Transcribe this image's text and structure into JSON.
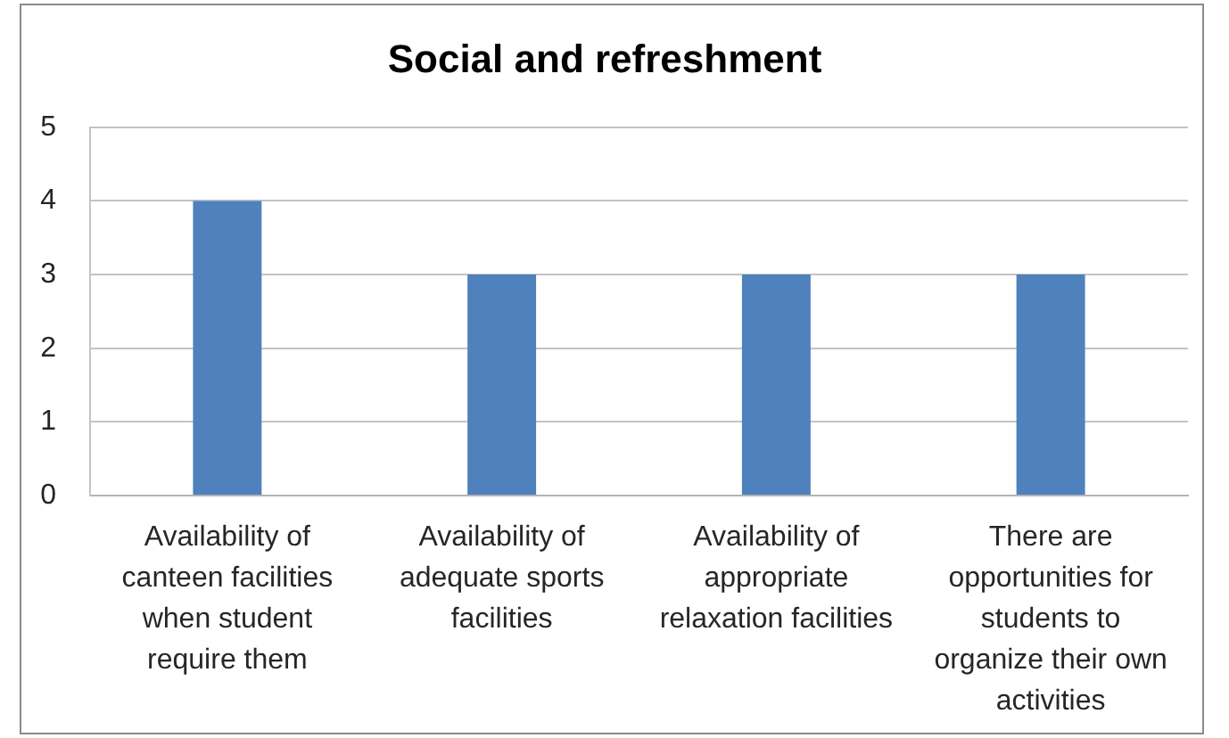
{
  "chart_data": {
    "type": "bar",
    "title": "Social and refreshment",
    "categories": [
      "Availability of canteen facilities when student require them",
      "Availability of adequate sports facilities",
      "Availability of appropriate relaxation facilities",
      "There are opportunities for students to organize their own activities"
    ],
    "values": [
      4,
      3,
      3,
      3
    ],
    "color": "#4f81bd",
    "ylim": [
      0,
      5
    ],
    "yticks": [
      0,
      1,
      2,
      3,
      4,
      5
    ],
    "grid": "y"
  }
}
